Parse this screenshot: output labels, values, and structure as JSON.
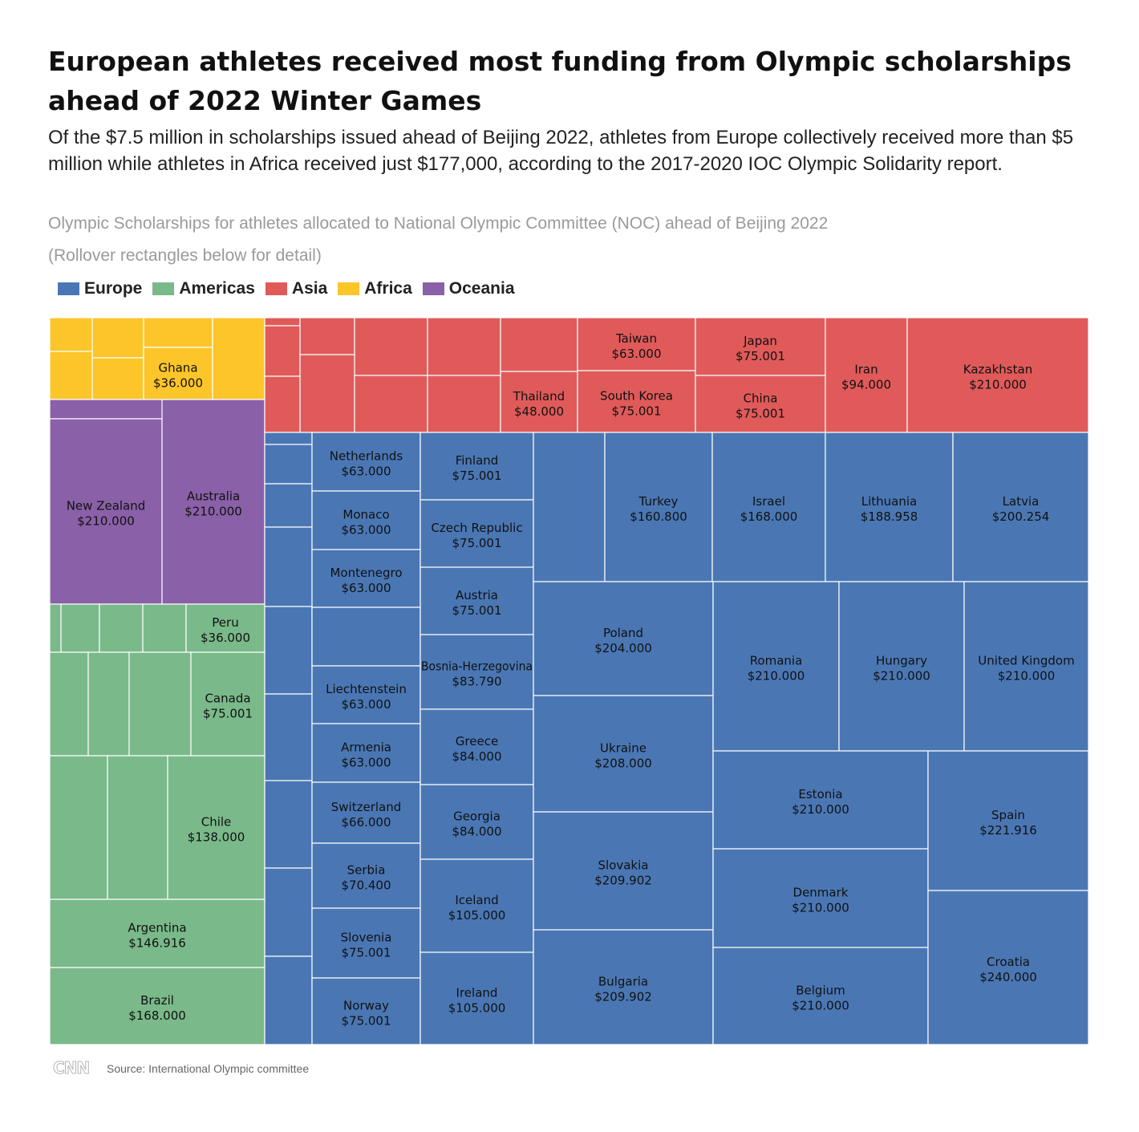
{
  "header": {
    "title": "European athletes received most funding from Olympic scholarships ahead of 2022 Winter Games",
    "subtitle": "Of the $7.5 million in scholarships issued ahead of Beijing 2022, athletes from Europe collectively received more than $5 million while athletes in Africa received just $177,000, according to the 2017-2020 IOC Olympic Solidarity report.",
    "chart_title": "Olympic Scholarships for athletes allocated to National Olympic Committee (NOC) ahead of Beijing 2022",
    "note": "(Rollover rectangles below for detail)"
  },
  "legend": [
    {
      "label": "Europe",
      "color": "#4a77b4"
    },
    {
      "label": "Americas",
      "color": "#7ab98a"
    },
    {
      "label": "Asia",
      "color": "#e05a5a"
    },
    {
      "label": "Africa",
      "color": "#fcc52a"
    },
    {
      "label": "Oceania",
      "color": "#8a60a8"
    }
  ],
  "footer": {
    "logo": "CNN",
    "source": "Source: International Olympic committee"
  },
  "chart_data": {
    "type": "treemap",
    "value_format": "$ with dot as thousands separator",
    "regions": [
      {
        "name": "Europe",
        "color": "#4a77b4"
      },
      {
        "name": "Americas",
        "color": "#7ab98a"
      },
      {
        "name": "Asia",
        "color": "#e05a5a"
      },
      {
        "name": "Africa",
        "color": "#fcc52a"
      },
      {
        "name": "Oceania",
        "color": "#8a60a8"
      }
    ],
    "items": [
      {
        "region": "Africa",
        "name": "",
        "value": ""
      },
      {
        "region": "Africa",
        "name": "",
        "value": ""
      },
      {
        "region": "Africa",
        "name": "",
        "value": ""
      },
      {
        "region": "Africa",
        "name": "",
        "value": ""
      },
      {
        "region": "Africa",
        "name": "",
        "value": ""
      },
      {
        "region": "Africa",
        "name": "",
        "value": ""
      },
      {
        "region": "Africa",
        "name": "",
        "value": ""
      },
      {
        "region": "Africa",
        "name": "Ghana",
        "value": "$36.000"
      },
      {
        "region": "Africa",
        "name": "",
        "value": ""
      },
      {
        "region": "Oceania",
        "name": "",
        "value": ""
      },
      {
        "region": "Oceania",
        "name": "New Zealand",
        "value": "$210.000"
      },
      {
        "region": "Oceania",
        "name": "Australia",
        "value": "$210.000"
      },
      {
        "region": "Americas",
        "name": "",
        "value": ""
      },
      {
        "region": "Americas",
        "name": "",
        "value": ""
      },
      {
        "region": "Americas",
        "name": "",
        "value": ""
      },
      {
        "region": "Americas",
        "name": "",
        "value": ""
      },
      {
        "region": "Americas",
        "name": "Peru",
        "value": "$36.000"
      },
      {
        "region": "Americas",
        "name": "",
        "value": ""
      },
      {
        "region": "Americas",
        "name": "",
        "value": ""
      },
      {
        "region": "Americas",
        "name": "",
        "value": ""
      },
      {
        "region": "Americas",
        "name": "Canada",
        "value": "$75.001"
      },
      {
        "region": "Americas",
        "name": "",
        "value": ""
      },
      {
        "region": "Americas",
        "name": "",
        "value": ""
      },
      {
        "region": "Americas",
        "name": "Chile",
        "value": "$138.000"
      },
      {
        "region": "Americas",
        "name": "Argentina",
        "value": "$146.916"
      },
      {
        "region": "Americas",
        "name": "Brazil",
        "value": "$168.000"
      },
      {
        "region": "Asia",
        "name": "",
        "value": ""
      },
      {
        "region": "Asia",
        "name": "",
        "value": ""
      },
      {
        "region": "Asia",
        "name": "",
        "value": ""
      },
      {
        "region": "Asia",
        "name": "",
        "value": ""
      },
      {
        "region": "Asia",
        "name": "",
        "value": ""
      },
      {
        "region": "Asia",
        "name": "",
        "value": ""
      },
      {
        "region": "Asia",
        "name": "",
        "value": ""
      },
      {
        "region": "Asia",
        "name": "",
        "value": ""
      },
      {
        "region": "Asia",
        "name": "",
        "value": ""
      },
      {
        "region": "Asia",
        "name": "",
        "value": ""
      },
      {
        "region": "Asia",
        "name": "Thailand",
        "value": "$48.000"
      },
      {
        "region": "Asia",
        "name": "Taiwan",
        "value": "$63.000"
      },
      {
        "region": "Asia",
        "name": "South Korea",
        "value": "$75.001"
      },
      {
        "region": "Asia",
        "name": "Japan",
        "value": "$75.001"
      },
      {
        "region": "Asia",
        "name": "China",
        "value": "$75.001"
      },
      {
        "region": "Asia",
        "name": "Iran",
        "value": "$94.000"
      },
      {
        "region": "Asia",
        "name": "Kazakhstan",
        "value": "$210.000"
      },
      {
        "region": "Europe",
        "name": "",
        "value": ""
      },
      {
        "region": "Europe",
        "name": "",
        "value": ""
      },
      {
        "region": "Europe",
        "name": "",
        "value": ""
      },
      {
        "region": "Europe",
        "name": "",
        "value": ""
      },
      {
        "region": "Europe",
        "name": "",
        "value": ""
      },
      {
        "region": "Europe",
        "name": "",
        "value": ""
      },
      {
        "region": "Europe",
        "name": "",
        "value": ""
      },
      {
        "region": "Europe",
        "name": "",
        "value": ""
      },
      {
        "region": "Europe",
        "name": "",
        "value": ""
      },
      {
        "region": "Europe",
        "name": "",
        "value": ""
      },
      {
        "region": "Europe",
        "name": "Netherlands",
        "value": "$63.000"
      },
      {
        "region": "Europe",
        "name": "Monaco",
        "value": "$63.000"
      },
      {
        "region": "Europe",
        "name": "Montenegro",
        "value": "$63.000"
      },
      {
        "region": "Europe",
        "name": "",
        "value": ""
      },
      {
        "region": "Europe",
        "name": "Liechtenstein",
        "value": "$63.000"
      },
      {
        "region": "Europe",
        "name": "Armenia",
        "value": "$63.000"
      },
      {
        "region": "Europe",
        "name": "Switzerland",
        "value": "$66.000"
      },
      {
        "region": "Europe",
        "name": "Serbia",
        "value": "$70.400"
      },
      {
        "region": "Europe",
        "name": "Slovenia",
        "value": "$75.001"
      },
      {
        "region": "Europe",
        "name": "Norway",
        "value": "$75.001"
      },
      {
        "region": "Europe",
        "name": "Finland",
        "value": "$75.001"
      },
      {
        "region": "Europe",
        "name": "Czech Republic",
        "value": "$75.001"
      },
      {
        "region": "Europe",
        "name": "Austria",
        "value": "$75.001"
      },
      {
        "region": "Europe",
        "name": "Bosnia-Herzegovina",
        "value": "$83.790"
      },
      {
        "region": "Europe",
        "name": "Greece",
        "value": "$84.000"
      },
      {
        "region": "Europe",
        "name": "Georgia",
        "value": "$84.000"
      },
      {
        "region": "Europe",
        "name": "Iceland",
        "value": "$105.000"
      },
      {
        "region": "Europe",
        "name": "Ireland",
        "value": "$105.000"
      },
      {
        "region": "Europe",
        "name": "",
        "value": ""
      },
      {
        "region": "Europe",
        "name": "Turkey",
        "value": "$160.800"
      },
      {
        "region": "Europe",
        "name": "Israel",
        "value": "$168.000"
      },
      {
        "region": "Europe",
        "name": "Lithuania",
        "value": "$188.958"
      },
      {
        "region": "Europe",
        "name": "Latvia",
        "value": "$200.254"
      },
      {
        "region": "Europe",
        "name": "Poland",
        "value": "$204.000"
      },
      {
        "region": "Europe",
        "name": "Ukraine",
        "value": "$208.000"
      },
      {
        "region": "Europe",
        "name": "Slovakia",
        "value": "$209.902"
      },
      {
        "region": "Europe",
        "name": "Bulgaria",
        "value": "$209.902"
      },
      {
        "region": "Europe",
        "name": "Romania",
        "value": "$210.000"
      },
      {
        "region": "Europe",
        "name": "Hungary",
        "value": "$210.000"
      },
      {
        "region": "Europe",
        "name": "United Kingdom",
        "value": "$210.000"
      },
      {
        "region": "Europe",
        "name": "Estonia",
        "value": "$210.000"
      },
      {
        "region": "Europe",
        "name": "Denmark",
        "value": "$210.000"
      },
      {
        "region": "Europe",
        "name": "Belgium",
        "value": "$210.000"
      },
      {
        "region": "Europe",
        "name": "Spain",
        "value": "$221.916"
      },
      {
        "region": "Europe",
        "name": "Croatia",
        "value": "$240.000"
      }
    ]
  }
}
